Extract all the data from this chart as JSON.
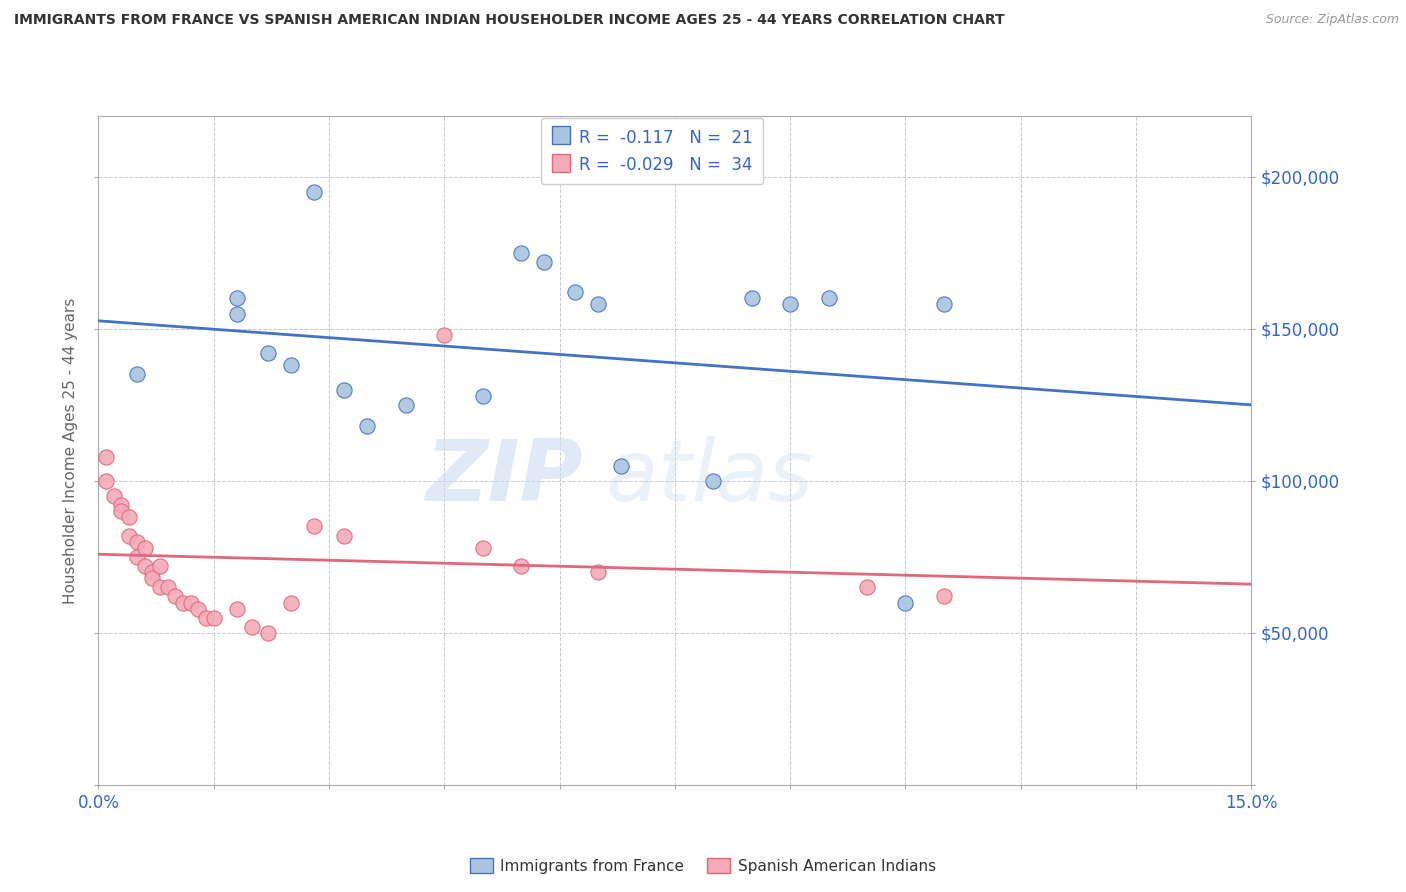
{
  "title": "IMMIGRANTS FROM FRANCE VS SPANISH AMERICAN INDIAN HOUSEHOLDER INCOME AGES 25 - 44 YEARS CORRELATION CHART",
  "source": "Source: ZipAtlas.com",
  "ylabel": "Householder Income Ages 25 - 44 years",
  "xlim": [
    0.0,
    0.15
  ],
  "ylim": [
    0,
    220000
  ],
  "xticks": [
    0.0,
    0.015,
    0.03,
    0.045,
    0.06,
    0.075,
    0.09,
    0.105,
    0.12,
    0.135,
    0.15
  ],
  "xticklabels": [
    "0.0%",
    "",
    "",
    "",
    "",
    "",
    "",
    "",
    "",
    "",
    "15.0%"
  ],
  "yticks": [
    0,
    50000,
    100000,
    150000,
    200000
  ],
  "blue_scatter_x": [
    0.005,
    0.018,
    0.018,
    0.022,
    0.025,
    0.028,
    0.032,
    0.035,
    0.04,
    0.05,
    0.055,
    0.058,
    0.062,
    0.065,
    0.068,
    0.08,
    0.085,
    0.09,
    0.095,
    0.105,
    0.11
  ],
  "blue_scatter_y": [
    135000,
    160000,
    155000,
    142000,
    138000,
    195000,
    130000,
    118000,
    125000,
    128000,
    175000,
    172000,
    162000,
    158000,
    105000,
    100000,
    160000,
    158000,
    160000,
    60000,
    158000
  ],
  "pink_scatter_x": [
    0.001,
    0.001,
    0.002,
    0.003,
    0.003,
    0.004,
    0.004,
    0.005,
    0.005,
    0.006,
    0.006,
    0.007,
    0.007,
    0.008,
    0.008,
    0.009,
    0.01,
    0.011,
    0.012,
    0.013,
    0.014,
    0.015,
    0.018,
    0.02,
    0.022,
    0.025,
    0.028,
    0.032,
    0.045,
    0.05,
    0.055,
    0.065,
    0.1,
    0.11
  ],
  "pink_scatter_y": [
    108000,
    100000,
    95000,
    92000,
    90000,
    88000,
    82000,
    80000,
    75000,
    78000,
    72000,
    70000,
    68000,
    72000,
    65000,
    65000,
    62000,
    60000,
    60000,
    58000,
    55000,
    55000,
    58000,
    52000,
    50000,
    60000,
    85000,
    82000,
    148000,
    78000,
    72000,
    70000,
    65000,
    62000
  ],
  "blue_R": -0.117,
  "blue_N": 21,
  "pink_R": -0.029,
  "pink_N": 34,
  "blue_color": "#aac4e0",
  "pink_color": "#f4aab8",
  "blue_line_color": "#4472c4",
  "pink_line_color": "#e06878",
  "watermark_zip": "ZIP",
  "watermark_atlas": "atlas",
  "background_color": "#ffffff",
  "grid_color": "#c8c8c8"
}
